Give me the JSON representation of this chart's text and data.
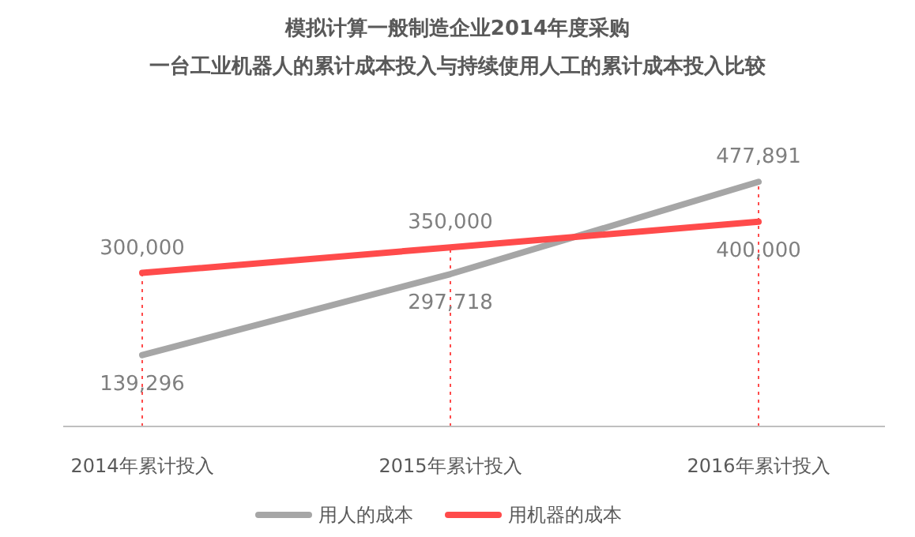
{
  "chart_data": {
    "type": "line",
    "title": "模拟计算一般制造企业2014年度采购",
    "subtitle": "一台工业机器人的累计成本投入与持续使用人工的累计成本投入比较",
    "categories": [
      "2014年累计投入",
      "2015年累计投入",
      "2016年累计投入"
    ],
    "series": [
      {
        "name": "用人的成本",
        "color": "#a6a6a6",
        "values": [
          139296,
          297718,
          477891
        ],
        "value_labels": [
          "139,296",
          "297,718",
          "477,891"
        ]
      },
      {
        "name": "用机器的成本",
        "color": "#ff4b4b",
        "values": [
          300000,
          350000,
          400000
        ],
        "value_labels": [
          "300,000",
          "350,000",
          "400,000"
        ]
      }
    ],
    "legend": "bottom",
    "grid": "x",
    "marker": "none",
    "line_style": "solid"
  }
}
